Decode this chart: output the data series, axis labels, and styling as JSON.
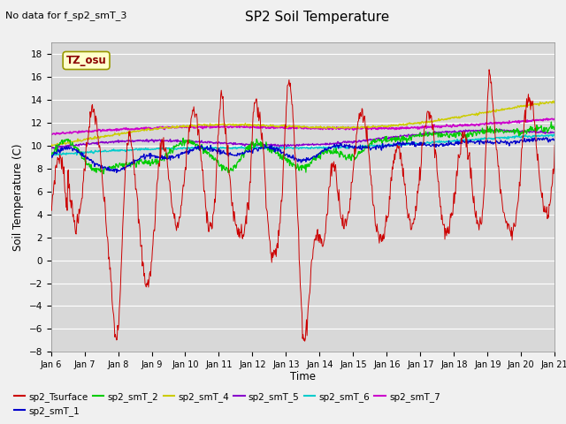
{
  "title": "SP2 Soil Temperature",
  "subtitle": "No data for f_sp2_smT_3",
  "xlabel": "Time",
  "ylabel": "Soil Temperature (C)",
  "ylim": [
    -8,
    19
  ],
  "xlim": [
    0,
    15
  ],
  "tz_label": "TZ_osu",
  "x_tick_labels": [
    "Jan 6",
    "Jan 7",
    "Jan 8",
    "Jan 9",
    "Jan 10",
    "Jan 11",
    "Jan 12",
    "Jan 13",
    "Jan 14",
    "Jan 15",
    "Jan 16",
    "Jan 17",
    "Jan 18",
    "Jan 19",
    "Jan 20",
    "Jan 21"
  ],
  "yticks": [
    -8,
    -6,
    -4,
    -2,
    0,
    2,
    4,
    6,
    8,
    10,
    12,
    14,
    16,
    18
  ],
  "series_colors": {
    "sp2_Tsurface": "#cc0000",
    "sp2_smT_1": "#0000cc",
    "sp2_smT_2": "#00cc00",
    "sp2_smT_4": "#cccc00",
    "sp2_smT_5": "#8800cc",
    "sp2_smT_6": "#00cccc",
    "sp2_smT_7": "#cc00cc"
  },
  "bg_color": "#d8d8d8",
  "fig_bg_color": "#f0f0f0"
}
